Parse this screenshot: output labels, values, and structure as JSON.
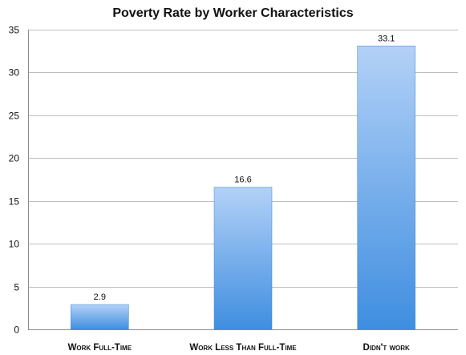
{
  "chart_data": {
    "type": "bar",
    "title": "Poverty Rate by Worker Characteristics",
    "xlabel": "",
    "ylabel": "",
    "categories": [
      "Work Full-Time",
      "Work Less Than Full-Time",
      "Didn't work"
    ],
    "values": [
      2.9,
      16.6,
      33.1
    ],
    "data_labels": [
      "2.9",
      "16.6",
      "33.1"
    ],
    "ylim": [
      0,
      35
    ],
    "yticks": [
      0,
      5,
      10,
      15,
      20,
      25,
      30,
      35
    ],
    "ytick_labels": [
      "0",
      "5",
      "10",
      "15",
      "20",
      "25",
      "30",
      "35"
    ],
    "grid": true,
    "legend": "none",
    "colors": {
      "bar_top": "#b3d1f7",
      "bar_bottom": "#3f8ee0",
      "bar_edge": "#3a86d8"
    }
  }
}
